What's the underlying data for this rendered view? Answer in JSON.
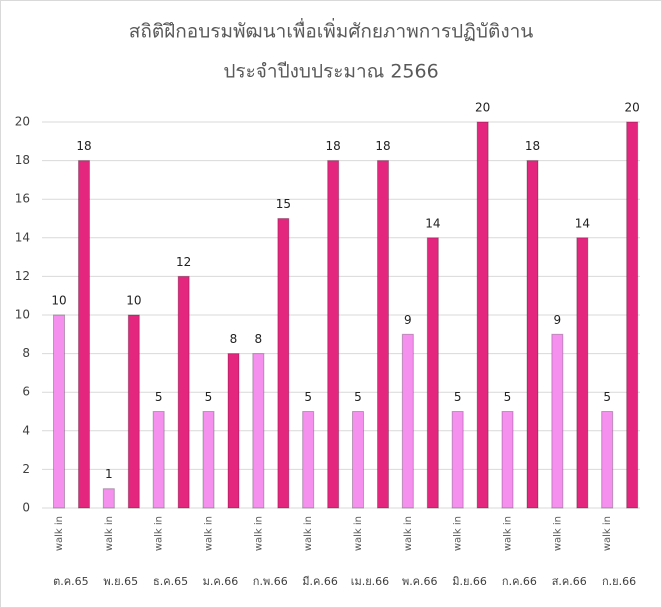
{
  "chart_data": {
    "type": "bar",
    "title": "สถิติฝึกอบรมพัฒนาเพื่อเพิ่มศักยภาพการปฏิบัติงาน",
    "subtitle": "ประจำปีงบประมาณ 2566",
    "categories": [
      "ต.ค.65",
      "พ.ย.65",
      "ธ.ค.65",
      "ม.ค.66",
      "ก.พ.66",
      "มี.ค.66",
      "เม.ย.66",
      "พ.ค.66",
      "มิ.ย.66",
      "ก.ค.66",
      "ส.ค.66",
      "ก.ย.66"
    ],
    "subcategories": [
      "walk in",
      null
    ],
    "series": [
      {
        "color": "#f590ef",
        "values": [
          10,
          1,
          5,
          5,
          8,
          5,
          5,
          9,
          5,
          5,
          9,
          5
        ]
      },
      {
        "color": "#e4267f",
        "values": [
          18,
          10,
          12,
          8,
          15,
          18,
          18,
          14,
          20,
          18,
          14,
          20
        ]
      }
    ],
    "ylim": [
      0,
      20
    ],
    "yticks": [
      0,
      2,
      4,
      6,
      8,
      10,
      12,
      14,
      16,
      18,
      20
    ],
    "grid": true
  }
}
